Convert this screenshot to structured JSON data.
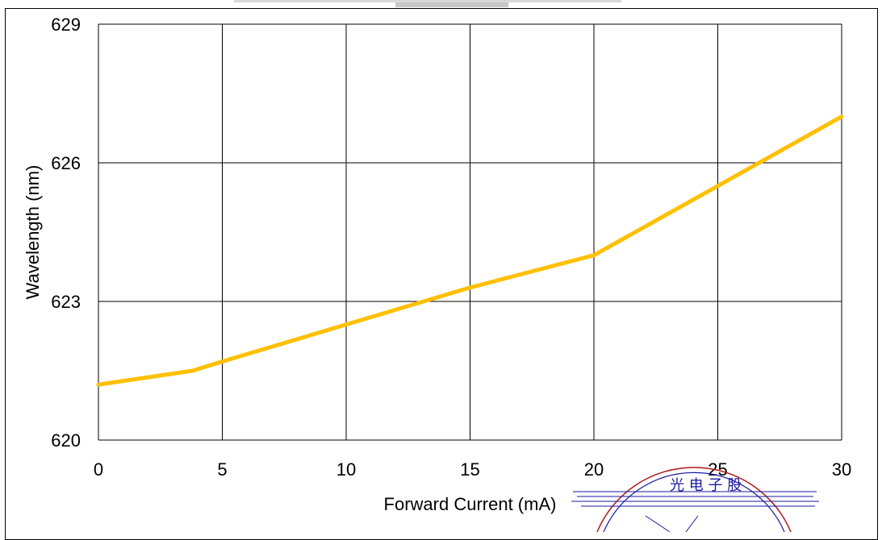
{
  "chart_data": {
    "type": "line",
    "xlabel": "Forward Current (mA)",
    "ylabel": "Wavelength (nm)",
    "xlim": [
      0,
      30
    ],
    "ylim": [
      620,
      629
    ],
    "xticks": [
      "0",
      "5",
      "10",
      "15",
      "20",
      "25",
      "30"
    ],
    "yticks": [
      "620",
      "623",
      "626",
      "629"
    ],
    "grid": true,
    "series": [
      {
        "color": "#FFC000",
        "x": [
          0,
          3.8,
          5,
          10,
          15,
          20,
          25,
          30
        ],
        "y": [
          621.2,
          621.5,
          621.7,
          622.5,
          623.3,
          624.0,
          625.5,
          627.0
        ]
      }
    ]
  },
  "decor": {
    "stamp_color": "#1a1aa0",
    "stamp_ring_color": "#b01818"
  }
}
